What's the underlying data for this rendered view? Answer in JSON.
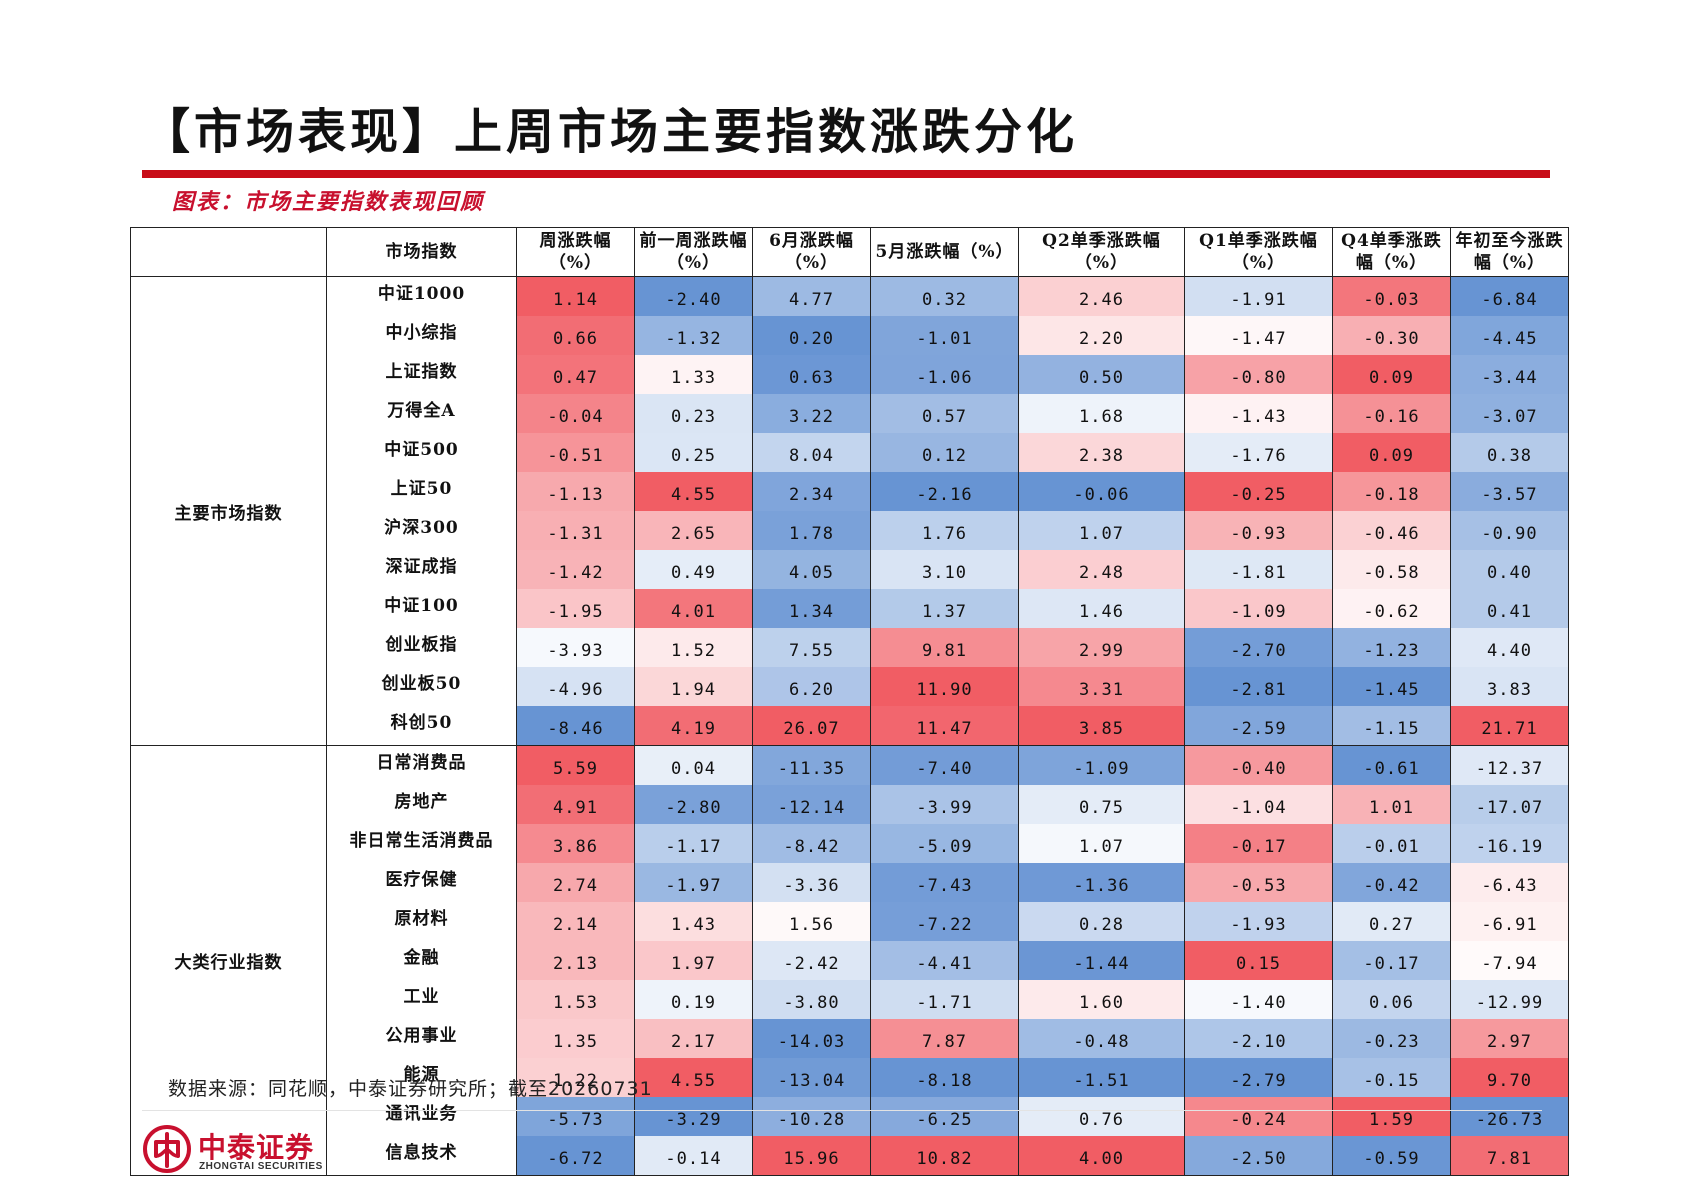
{
  "title": "【市场表现】上周市场主要指数涨跌分化",
  "caption": "图表：市场主要指数表现回顾",
  "source": "数据来源：同花顺，中泰证券研究所；截至20260731",
  "logo": {
    "cn": "中泰证券",
    "en": "ZHONGTAI SECURITIES"
  },
  "table": {
    "corner": "",
    "header_index": "市场指数",
    "columns": [
      "周涨跌幅（%）",
      "前一周涨跌幅（%）",
      "6月涨跌幅（%）",
      "5月涨跌幅（%）",
      "Q2单季涨跌幅（%）",
      "Q1单季涨跌幅（%）",
      "Q4单季涨跌幅（%）",
      "年初至今涨跌幅（%）"
    ],
    "groups": [
      {
        "name": "主要市场指数",
        "rows": [
          {
            "name": "中证1000",
            "values": [
              "1.14",
              "-2.40",
              "4.77",
              "0.32",
              "2.46",
              "-1.91",
              "-0.03",
              "-6.84"
            ]
          },
          {
            "name": "中小综指",
            "values": [
              "0.66",
              "-1.32",
              "0.20",
              "-1.01",
              "2.20",
              "-1.47",
              "-0.30",
              "-4.45"
            ]
          },
          {
            "name": "上证指数",
            "values": [
              "0.47",
              "1.33",
              "0.63",
              "-1.06",
              "0.50",
              "-0.80",
              "0.09",
              "-3.44"
            ]
          },
          {
            "name": "万得全A",
            "values": [
              "-0.04",
              "0.23",
              "3.22",
              "0.57",
              "1.68",
              "-1.43",
              "-0.16",
              "-3.07"
            ]
          },
          {
            "name": "中证500",
            "values": [
              "-0.51",
              "0.25",
              "8.04",
              "0.12",
              "2.38",
              "-1.76",
              "0.09",
              "0.38"
            ]
          },
          {
            "name": "上证50",
            "values": [
              "-1.13",
              "4.55",
              "2.34",
              "-2.16",
              "-0.06",
              "-0.25",
              "-0.18",
              "-3.57"
            ]
          },
          {
            "name": "沪深300",
            "values": [
              "-1.31",
              "2.65",
              "1.78",
              "1.76",
              "1.07",
              "-0.93",
              "-0.46",
              "-0.90"
            ]
          },
          {
            "name": "深证成指",
            "values": [
              "-1.42",
              "0.49",
              "4.05",
              "3.10",
              "2.48",
              "-1.81",
              "-0.58",
              "0.40"
            ]
          },
          {
            "name": "中证100",
            "values": [
              "-1.95",
              "4.01",
              "1.34",
              "1.37",
              "1.46",
              "-1.09",
              "-0.62",
              "0.41"
            ]
          },
          {
            "name": "创业板指",
            "values": [
              "-3.93",
              "1.52",
              "7.55",
              "9.81",
              "2.99",
              "-2.70",
              "-1.23",
              "4.40"
            ]
          },
          {
            "name": "创业板50",
            "values": [
              "-4.96",
              "1.94",
              "6.20",
              "11.90",
              "3.31",
              "-2.81",
              "-1.45",
              "3.83"
            ]
          },
          {
            "name": "科创50",
            "values": [
              "-8.46",
              "4.19",
              "26.07",
              "11.47",
              "3.85",
              "-2.59",
              "-1.15",
              "21.71"
            ]
          }
        ]
      },
      {
        "name": "大类行业指数",
        "rows": [
          {
            "name": "日常消费品",
            "values": [
              "5.59",
              "0.04",
              "-11.35",
              "-7.40",
              "-1.09",
              "-0.40",
              "-0.61",
              "-12.37"
            ]
          },
          {
            "name": "房地产",
            "values": [
              "4.91",
              "-2.80",
              "-12.14",
              "-3.99",
              "0.75",
              "-1.04",
              "1.01",
              "-17.07"
            ]
          },
          {
            "name": "非日常生活消费品",
            "values": [
              "3.86",
              "-1.17",
              "-8.42",
              "-5.09",
              "1.07",
              "-0.17",
              "-0.01",
              "-16.19"
            ]
          },
          {
            "name": "医疗保健",
            "values": [
              "2.74",
              "-1.97",
              "-3.36",
              "-7.43",
              "-1.36",
              "-0.53",
              "-0.42",
              "-6.43"
            ]
          },
          {
            "name": "原材料",
            "values": [
              "2.14",
              "1.43",
              "1.56",
              "-7.22",
              "0.28",
              "-1.93",
              "0.27",
              "-6.91"
            ]
          },
          {
            "name": "金融",
            "values": [
              "2.13",
              "1.97",
              "-2.42",
              "-4.41",
              "-1.44",
              "0.15",
              "-0.17",
              "-7.94"
            ]
          },
          {
            "name": "工业",
            "values": [
              "1.53",
              "0.19",
              "-3.80",
              "-1.71",
              "1.60",
              "-1.40",
              "0.06",
              "-12.99"
            ]
          },
          {
            "name": "公用事业",
            "values": [
              "1.35",
              "2.17",
              "-14.03",
              "7.87",
              "-0.48",
              "-2.10",
              "-0.23",
              "2.97"
            ]
          },
          {
            "name": "能源",
            "values": [
              "1.22",
              "4.55",
              "-13.04",
              "-8.18",
              "-1.51",
              "-2.79",
              "-0.15",
              "9.70"
            ]
          },
          {
            "name": "通讯业务",
            "values": [
              "-5.73",
              "-3.29",
              "-10.28",
              "-6.25",
              "0.76",
              "-0.24",
              "1.59",
              "-26.73"
            ]
          },
          {
            "name": "信息技术",
            "values": [
              "-6.72",
              "-0.14",
              "15.96",
              "10.82",
              "4.00",
              "-2.50",
              "-0.59",
              "7.81"
            ]
          }
        ]
      }
    ],
    "colors": {
      "positive_strong": "#f0545c",
      "negative_strong": "#5f8ed1",
      "neutral": "#ffffff"
    }
  }
}
